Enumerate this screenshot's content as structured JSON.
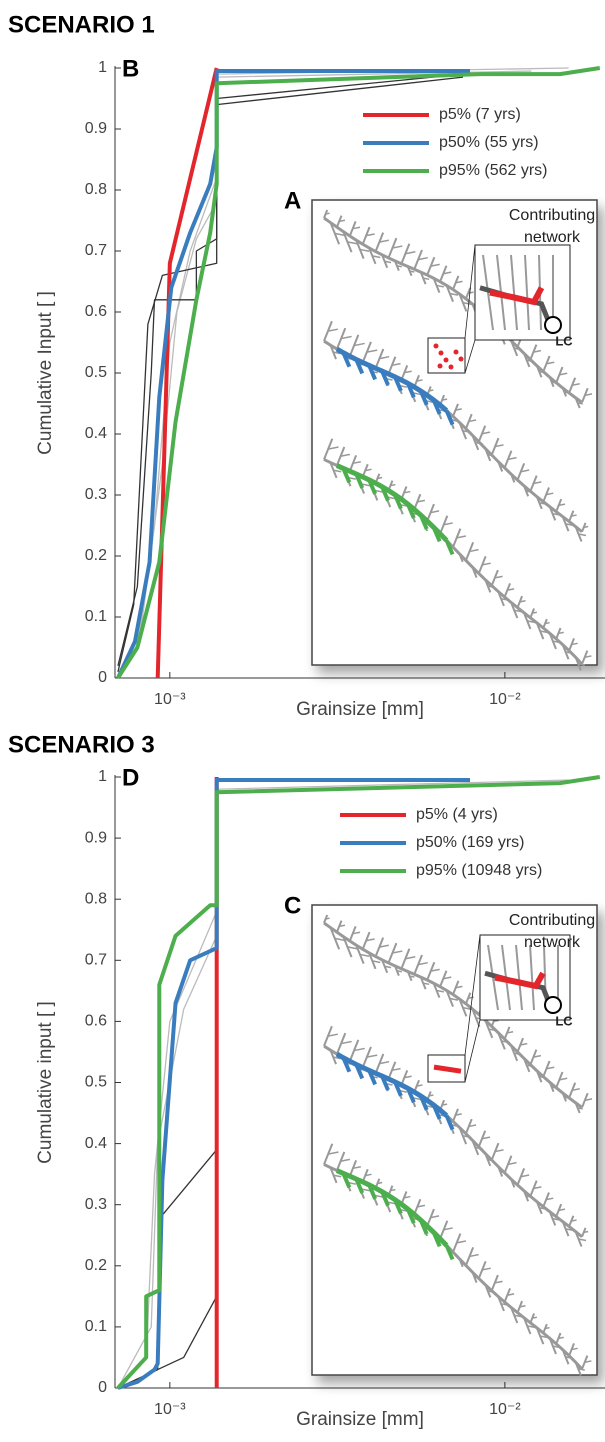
{
  "chart_data": [
    {
      "type": "line",
      "title": "SCENARIO 1",
      "panel_label": "B",
      "x_label": "Grainsize [mm]",
      "y_label": "Cumulative Input [ ]",
      "log_x": true,
      "xlim": [
        0.000686,
        0.0199
      ],
      "ylim": [
        0,
        1
      ],
      "xticks": [
        {
          "value": 0.001,
          "label": "10⁻³"
        },
        {
          "value": 0.01,
          "label": "10⁻²"
        }
      ],
      "yticks": [
        0,
        0.1,
        0.2,
        0.3,
        0.4,
        0.5,
        0.6,
        0.7,
        0.8,
        0.9,
        1
      ],
      "legend": "upper right",
      "inset": {
        "panel_label": "A",
        "caption": [
          "Contributing",
          "network"
        ],
        "outlet_label": "LC"
      },
      "series": [
        {
          "color": "#bbbbbb",
          "x": [
            0.0007,
            0.0008,
            0.0009,
            0.001,
            0.00115,
            0.00138,
            0.00138,
            0.0155
          ],
          "values": [
            0,
            0.05,
            0.25,
            0.55,
            0.7,
            0.82,
            0.99,
            1
          ]
        },
        {
          "color": "#bbbbbb",
          "x": [
            0.0007,
            0.00082,
            0.00095,
            0.00105,
            0.0012,
            0.00138,
            0.00138,
            0.012
          ],
          "values": [
            0,
            0.08,
            0.35,
            0.6,
            0.72,
            0.78,
            0.985,
            0.995
          ]
        },
        {
          "color": "#333333",
          "x": [
            0.0007,
            0.0008,
            0.00088,
            0.0009,
            0.0012,
            0.0012,
            0.00138,
            0.00138,
            0.0075
          ],
          "values": [
            0.02,
            0.15,
            0.5,
            0.62,
            0.62,
            0.7,
            0.72,
            0.95,
            0.99
          ]
        },
        {
          "color": "#333333",
          "x": [
            0.0007,
            0.00078,
            0.00086,
            0.00095,
            0.00138,
            0.00138,
            0.0075
          ],
          "values": [
            0.01,
            0.12,
            0.58,
            0.66,
            0.68,
            0.94,
            0.985
          ]
        },
        {
          "name": "p5% (7 yrs)",
          "color": "#e3262b",
          "x": [
            0.00092,
            0.001,
            0.00138
          ],
          "values": [
            0,
            0.68,
            1
          ]
        },
        {
          "name": "p50% (55 yrs)",
          "color": "#3a7dbf",
          "x": [
            0.0007,
            0.000787,
            0.00087,
            0.00093,
            0.00101,
            0.00115,
            0.00132,
            0.00138,
            0.00138,
            0.00787
          ],
          "values": [
            0,
            0.06,
            0.19,
            0.46,
            0.64,
            0.73,
            0.81,
            0.87,
            0.995,
            0.995
          ]
        },
        {
          "name": "p95% (562 yrs)",
          "color": "#4cae4c",
          "x": [
            0.0007,
            0.0008,
            0.00093,
            0.00104,
            0.0012,
            0.00132,
            0.00138,
            0.00138,
            0.00843,
            0.0146,
            0.0192
          ],
          "values": [
            0,
            0.05,
            0.19,
            0.42,
            0.62,
            0.73,
            0.81,
            0.975,
            0.99,
            0.99,
            1
          ]
        }
      ]
    },
    {
      "type": "line",
      "title": "SCENARIO 3",
      "panel_label": "D",
      "x_label": "Grainsize [mm]",
      "y_label": "Cumulative input [ ]",
      "log_x": true,
      "xlim": [
        0.000686,
        0.0199
      ],
      "ylim": [
        0,
        1
      ],
      "xticks": [
        {
          "value": 0.001,
          "label": "10⁻³"
        },
        {
          "value": 0.01,
          "label": "10⁻²"
        }
      ],
      "yticks": [
        0,
        0.1,
        0.2,
        0.3,
        0.4,
        0.5,
        0.6,
        0.7,
        0.8,
        0.9,
        1
      ],
      "legend": "upper right",
      "inset": {
        "panel_label": "C",
        "caption": [
          "Contributing",
          "network"
        ],
        "outlet_label": "LC"
      },
      "series": [
        {
          "color": "#bbbbbb",
          "x": [
            0.0007,
            0.00085,
            0.0009,
            0.001,
            0.00138
          ],
          "values": [
            0,
            0.05,
            0.35,
            0.6,
            0.78
          ]
        },
        {
          "color": "#bbbbbb",
          "x": [
            0.0007,
            0.00088,
            0.00092,
            0.0011,
            0.00138
          ],
          "values": [
            0,
            0.1,
            0.4,
            0.62,
            0.74
          ]
        },
        {
          "color": "#bbbbbb",
          "x": [
            0.00138,
            0.0155
          ],
          "values": [
            0.98,
            0.995
          ]
        },
        {
          "color": "#333333",
          "x": [
            0.0007,
            0.00092,
            0.00094,
            0.00138
          ],
          "values": [
            0,
            0.03,
            0.28,
            0.39
          ]
        },
        {
          "color": "#333333",
          "x": [
            0.0007,
            0.0011,
            0.00138
          ],
          "values": [
            0,
            0.05,
            0.15
          ]
        },
        {
          "name": "p5% (4 yrs)",
          "color": "#e3262b",
          "x": [
            0.00138,
            0.00138
          ],
          "values": [
            0,
            1
          ]
        },
        {
          "name": "p50% (169 yrs)",
          "color": "#3a7dbf",
          "x": [
            0.0007,
            0.0008,
            0.0009,
            0.00092,
            0.00095,
            0.00104,
            0.00115,
            0.00138,
            0.00138,
            0.00787
          ],
          "values": [
            0,
            0.01,
            0.03,
            0.04,
            0.34,
            0.63,
            0.7,
            0.72,
            0.995,
            0.995
          ]
        },
        {
          "name": "p95% (10948 yrs)",
          "color": "#4cae4c",
          "x": [
            0.0007,
            0.00085,
            0.00085,
            0.00093,
            0.00093,
            0.00104,
            0.00132,
            0.00138,
            0.00138,
            0.0146,
            0.0192
          ],
          "values": [
            0,
            0.05,
            0.15,
            0.16,
            0.66,
            0.74,
            0.79,
            0.79,
            0.975,
            0.99,
            1
          ]
        }
      ]
    }
  ]
}
